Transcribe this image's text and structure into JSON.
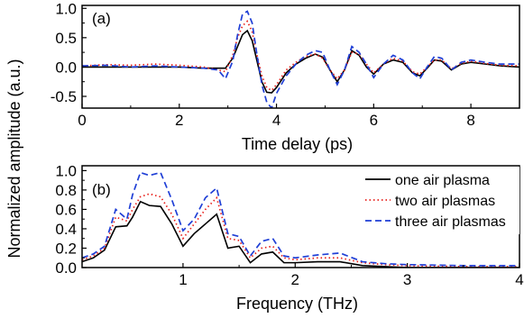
{
  "y_axis_title": "Normalized amplitude (a.u.)",
  "chart_data": [
    {
      "type": "line",
      "panel_label": "(a)",
      "xlabel": "Time delay (ps)",
      "ylabel": "",
      "xlim": [
        0,
        9
      ],
      "ylim": [
        -0.7,
        1.05
      ],
      "x_ticks": [
        0,
        2,
        4,
        6,
        8
      ],
      "y_ticks": [
        -0.5,
        0.0,
        0.5,
        1.0
      ],
      "x_tick_labels": [
        "0",
        "2",
        "4",
        "6",
        "8"
      ],
      "y_tick_labels": [
        "-0.5",
        "0.0",
        "0.5",
        "1.0"
      ],
      "grid": false,
      "legend": "none",
      "series": [
        {
          "name": "one air plasma",
          "color": "#000000",
          "dash": "solid",
          "x": [
            0,
            0.5,
            1.0,
            1.5,
            2.0,
            2.5,
            2.8,
            2.95,
            3.1,
            3.2,
            3.3,
            3.4,
            3.5,
            3.6,
            3.7,
            3.8,
            3.9,
            4.0,
            4.2,
            4.4,
            4.6,
            4.8,
            4.95,
            5.1,
            5.25,
            5.4,
            5.55,
            5.7,
            5.85,
            6.0,
            6.2,
            6.4,
            6.6,
            6.8,
            6.95,
            7.1,
            7.25,
            7.4,
            7.6,
            7.8,
            8.0,
            8.3,
            8.6,
            9.0
          ],
          "y": [
            0.0,
            0.0,
            0.0,
            0.0,
            0.0,
            -0.02,
            -0.02,
            -0.02,
            0.15,
            0.35,
            0.55,
            0.62,
            0.45,
            0.1,
            -0.25,
            -0.43,
            -0.44,
            -0.35,
            -0.1,
            0.05,
            0.15,
            0.22,
            0.17,
            -0.05,
            -0.25,
            -0.05,
            0.28,
            0.2,
            0.0,
            -0.12,
            0.05,
            0.12,
            0.08,
            -0.1,
            -0.15,
            -0.02,
            0.12,
            0.1,
            -0.05,
            0.05,
            0.08,
            0.05,
            0.02,
            0.0
          ]
        },
        {
          "name": "two air plasmas",
          "color": "#e8211c",
          "dash": "dot",
          "x": [
            0,
            0.5,
            1.0,
            1.5,
            2.0,
            2.5,
            2.8,
            2.95,
            3.1,
            3.2,
            3.3,
            3.4,
            3.5,
            3.6,
            3.7,
            3.8,
            3.9,
            4.0,
            4.2,
            4.4,
            4.6,
            4.8,
            4.95,
            5.1,
            5.25,
            5.4,
            5.55,
            5.7,
            5.85,
            6.0,
            6.2,
            6.4,
            6.6,
            6.8,
            6.95,
            7.1,
            7.25,
            7.4,
            7.6,
            7.8,
            8.0,
            8.3,
            8.6,
            9.0
          ],
          "y": [
            0.02,
            0.04,
            0.03,
            0.05,
            0.03,
            0.0,
            -0.05,
            -0.08,
            0.2,
            0.5,
            0.7,
            0.78,
            0.6,
            0.2,
            -0.15,
            -0.35,
            -0.4,
            -0.3,
            -0.05,
            0.08,
            0.18,
            0.22,
            0.15,
            -0.05,
            -0.2,
            -0.05,
            0.25,
            0.22,
            0.05,
            -0.1,
            0.05,
            0.15,
            0.1,
            -0.08,
            -0.12,
            0.0,
            0.12,
            0.12,
            -0.03,
            0.06,
            0.1,
            0.06,
            0.03,
            0.02
          ]
        },
        {
          "name": "three air plasmas",
          "color": "#1f3fd6",
          "dash": "dash",
          "x": [
            0,
            0.5,
            1.0,
            1.5,
            2.0,
            2.5,
            2.8,
            2.95,
            3.1,
            3.2,
            3.3,
            3.4,
            3.5,
            3.6,
            3.7,
            3.8,
            3.9,
            4.0,
            4.2,
            4.4,
            4.6,
            4.8,
            4.95,
            5.1,
            5.25,
            5.4,
            5.55,
            5.7,
            5.85,
            6.0,
            6.2,
            6.4,
            6.6,
            6.8,
            6.95,
            7.1,
            7.25,
            7.4,
            7.6,
            7.8,
            8.0,
            8.3,
            8.6,
            9.0
          ],
          "y": [
            0.02,
            0.03,
            0.0,
            0.02,
            0.0,
            -0.02,
            -0.05,
            -0.2,
            0.1,
            0.55,
            0.9,
            0.95,
            0.75,
            0.2,
            -0.3,
            -0.6,
            -0.7,
            -0.45,
            -0.15,
            0.05,
            0.2,
            0.28,
            0.25,
            -0.05,
            -0.3,
            -0.05,
            0.35,
            0.25,
            0.05,
            -0.18,
            0.05,
            0.2,
            0.12,
            -0.1,
            -0.2,
            0.0,
            0.18,
            0.15,
            -0.05,
            0.08,
            0.12,
            0.08,
            0.05,
            0.05
          ]
        }
      ]
    },
    {
      "type": "line",
      "panel_label": "(b)",
      "xlabel": "Frequency (THz)",
      "ylabel": "",
      "xlim": [
        0.1,
        4.0
      ],
      "ylim": [
        0.0,
        1.05
      ],
      "x_ticks": [
        1,
        2,
        3,
        4
      ],
      "y_ticks": [
        0.0,
        0.2,
        0.4,
        0.6,
        0.8,
        1.0
      ],
      "x_tick_labels": [
        "1",
        "2",
        "3",
        "4"
      ],
      "y_tick_labels": [
        "0.0",
        "0.2",
        "0.4",
        "0.6",
        "0.8",
        "1.0"
      ],
      "grid": false,
      "legend": "top-right",
      "series": [
        {
          "name": "one air plasma",
          "color": "#000000",
          "dash": "solid",
          "x": [
            0.1,
            0.2,
            0.3,
            0.4,
            0.5,
            0.55,
            0.62,
            0.7,
            0.8,
            0.9,
            1.0,
            1.1,
            1.2,
            1.3,
            1.4,
            1.5,
            1.6,
            1.7,
            1.8,
            1.9,
            2.0,
            2.2,
            2.4,
            2.6,
            2.8,
            3.0,
            3.5,
            4.0
          ],
          "y": [
            0.06,
            0.1,
            0.18,
            0.42,
            0.43,
            0.52,
            0.68,
            0.64,
            0.63,
            0.45,
            0.22,
            0.35,
            0.45,
            0.55,
            0.2,
            0.22,
            0.05,
            0.14,
            0.16,
            0.05,
            0.05,
            0.06,
            0.06,
            0.02,
            0.01,
            0.0,
            0.0,
            0.0
          ]
        },
        {
          "name": "two air plasmas",
          "color": "#e8211c",
          "dash": "dot",
          "x": [
            0.1,
            0.2,
            0.3,
            0.4,
            0.5,
            0.55,
            0.62,
            0.7,
            0.8,
            0.9,
            1.0,
            1.1,
            1.2,
            1.3,
            1.4,
            1.5,
            1.6,
            1.7,
            1.8,
            1.9,
            2.0,
            2.2,
            2.4,
            2.6,
            2.8,
            3.0,
            3.5,
            4.0
          ],
          "y": [
            0.08,
            0.12,
            0.2,
            0.52,
            0.48,
            0.6,
            0.73,
            0.76,
            0.73,
            0.55,
            0.3,
            0.45,
            0.6,
            0.72,
            0.3,
            0.28,
            0.1,
            0.2,
            0.22,
            0.1,
            0.08,
            0.1,
            0.1,
            0.05,
            0.03,
            0.02,
            0.01,
            0.01
          ]
        },
        {
          "name": "three air plasmas",
          "color": "#1f3fd6",
          "dash": "dash",
          "x": [
            0.1,
            0.2,
            0.3,
            0.4,
            0.5,
            0.55,
            0.62,
            0.7,
            0.8,
            0.9,
            1.0,
            1.1,
            1.2,
            1.3,
            1.4,
            1.5,
            1.6,
            1.7,
            1.8,
            1.9,
            2.0,
            2.2,
            2.4,
            2.6,
            2.8,
            3.0,
            3.5,
            4.0
          ],
          "y": [
            0.1,
            0.14,
            0.22,
            0.6,
            0.5,
            0.75,
            0.98,
            0.95,
            0.98,
            0.7,
            0.38,
            0.5,
            0.72,
            0.82,
            0.35,
            0.32,
            0.12,
            0.27,
            0.3,
            0.12,
            0.1,
            0.13,
            0.15,
            0.06,
            0.04,
            0.03,
            0.02,
            0.02
          ]
        }
      ]
    }
  ]
}
